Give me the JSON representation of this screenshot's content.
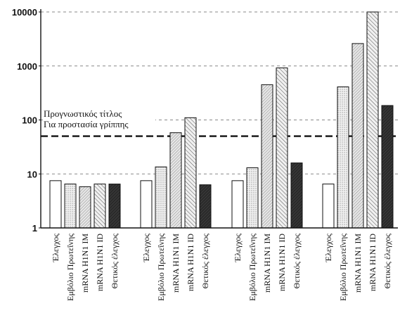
{
  "chart_data": {
    "type": "bar",
    "yscale": "log",
    "ylim": [
      1,
      10000
    ],
    "yticks": [
      "1",
      "10",
      "100",
      "1000",
      "10000"
    ],
    "grid": true,
    "threshold": {
      "value": 50,
      "label_line1": "Προγνωστικός τίτλος",
      "label_line2": "Για προστασία γρίππης"
    },
    "group_categories": [
      "Έλεγχος",
      "Εμβόλιο Πρωτεΐνης",
      "mRNA H1N1 IM",
      "mRNA H1N1 ID",
      "Θετικός έλεγχος"
    ],
    "groups": [
      {
        "values": [
          7.5,
          6.5,
          5.8,
          6.5,
          6.5
        ]
      },
      {
        "values": [
          7.5,
          13.5,
          58,
          110,
          6.3
        ]
      },
      {
        "values": [
          7.5,
          13,
          450,
          920,
          16
        ]
      },
      {
        "values": [
          6.5,
          410,
          2600,
          10000,
          185
        ]
      }
    ],
    "patterns": [
      "white",
      "dotted",
      "hatch-fine",
      "hatch-diagonal",
      "dark"
    ]
  }
}
